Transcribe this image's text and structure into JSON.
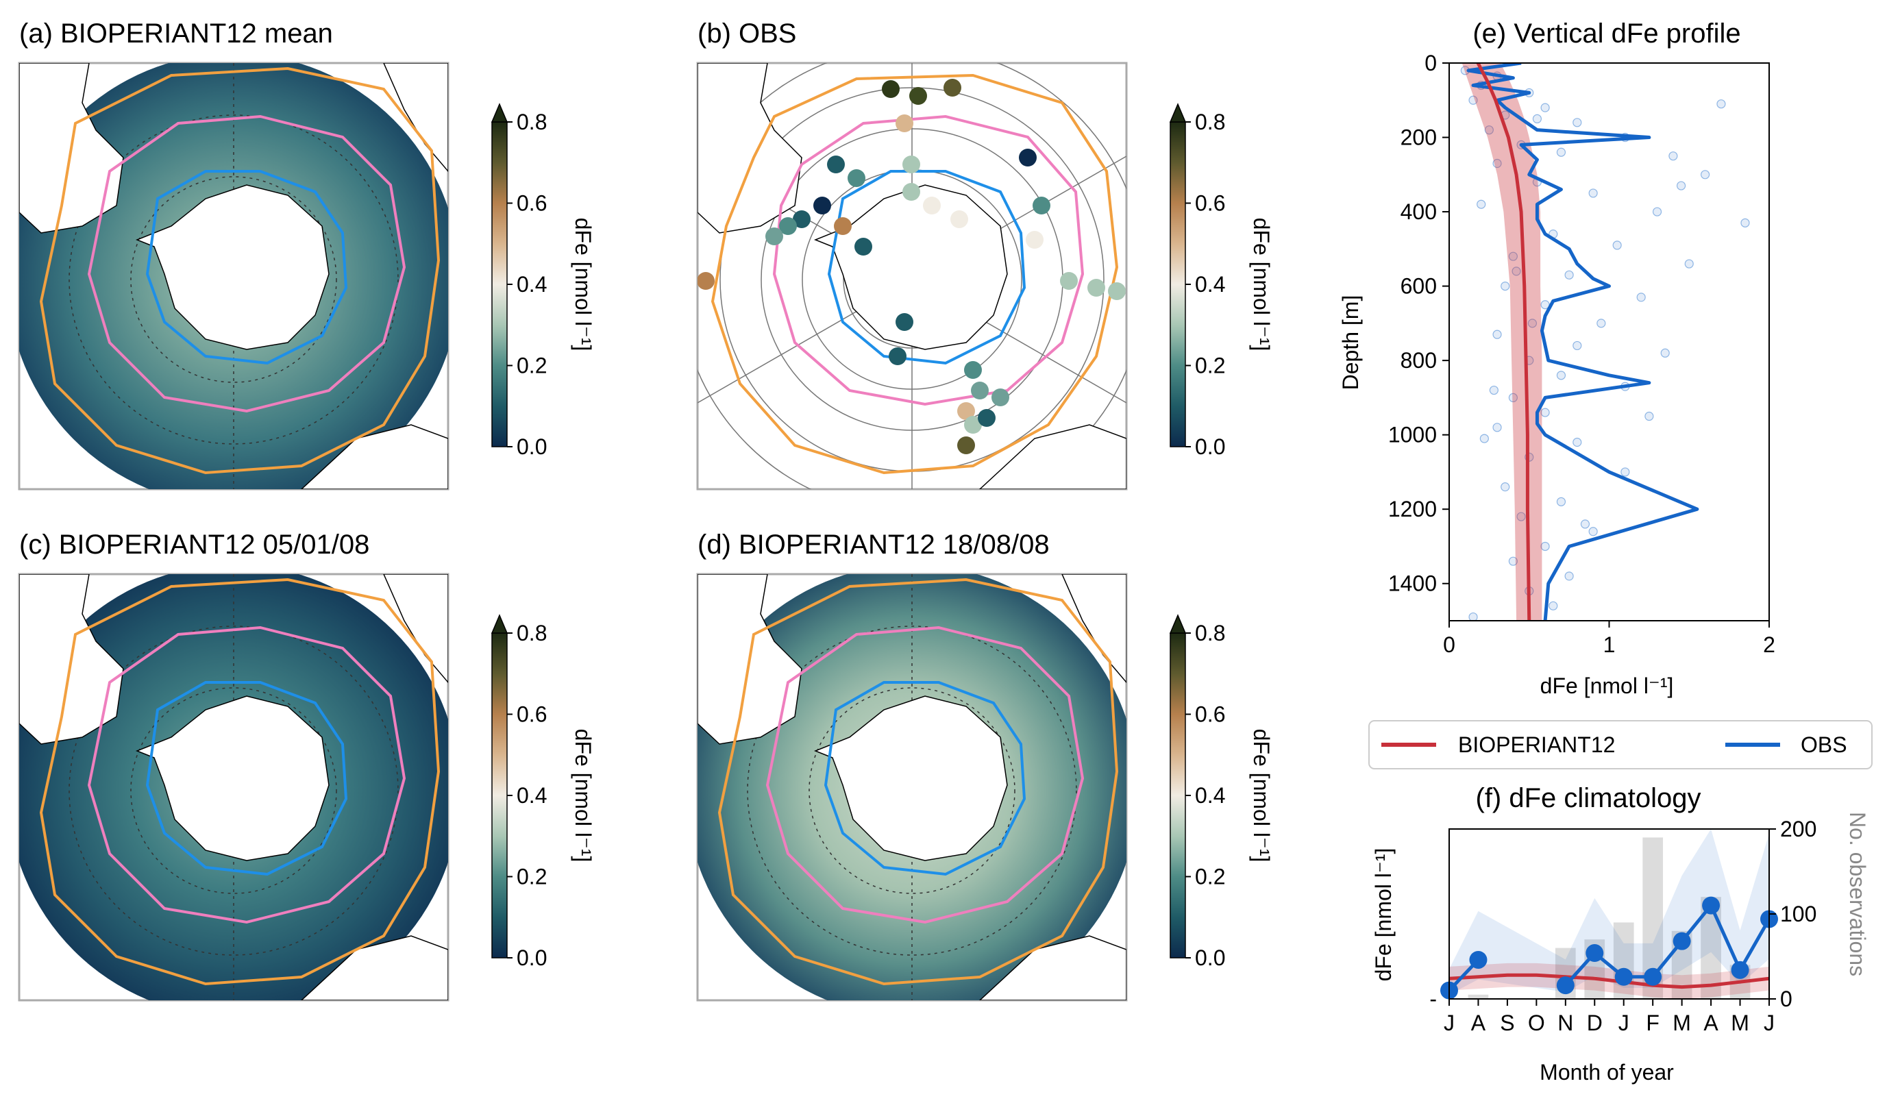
{
  "panels": {
    "a": {
      "title": "(a) BIOPERIANT12 mean"
    },
    "b": {
      "title": "(b) OBS"
    },
    "c": {
      "title": "(c) BIOPERIANT12 05/01/08"
    },
    "d": {
      "title": "(d) BIOPERIANT12 18/08/08"
    }
  },
  "colorbar": {
    "label": "dFe [nmol l⁻¹]",
    "ticks": [
      "0.0",
      "0.2",
      "0.4",
      "0.6",
      "0.8"
    ],
    "range": [
      0,
      0.8
    ],
    "extend": "max",
    "colors": [
      "#0c2a4d",
      "#1f5b66",
      "#4e8c86",
      "#a9c7b5",
      "#f1ece3",
      "#d9b58e",
      "#b6804d",
      "#5e5a2e",
      "#1d2a12"
    ]
  },
  "map_colors": {
    "front_orange": "#f2a040",
    "front_pink": "#ef7fbe",
    "front_blue": "#1e8fe8"
  },
  "legend": {
    "entries": [
      {
        "label": "BIOPERIANT12",
        "color": "#c8303a"
      },
      {
        "label": "OBS",
        "color": "#1565c8"
      }
    ],
    "placement": "between-e-and-f"
  },
  "chart_data": [
    {
      "panel": "e",
      "type": "line",
      "title": "(e) Vertical dFe profile",
      "xlabel": "dFe [nmol l⁻¹]",
      "ylabel": "Depth [m]",
      "xlim": [
        0,
        2
      ],
      "ylim": [
        1500,
        0
      ],
      "xticks": [
        "0",
        "1",
        "2"
      ],
      "yticks": [
        "0",
        "200",
        "400",
        "600",
        "800",
        "1000",
        "1200",
        "1400"
      ],
      "series": [
        {
          "name": "BIOPERIANT12",
          "color": "#c8303a",
          "depth": [
            0,
            50,
            100,
            150,
            200,
            300,
            400,
            600,
            800,
            1000,
            1200,
            1500
          ],
          "mean": [
            0.18,
            0.24,
            0.29,
            0.33,
            0.37,
            0.42,
            0.45,
            0.47,
            0.48,
            0.49,
            0.49,
            0.5
          ],
          "lower": [
            0.08,
            0.12,
            0.16,
            0.2,
            0.24,
            0.3,
            0.34,
            0.38,
            0.39,
            0.4,
            0.41,
            0.42
          ],
          "upper": [
            0.32,
            0.38,
            0.43,
            0.47,
            0.5,
            0.55,
            0.57,
            0.57,
            0.58,
            0.58,
            0.58,
            0.58
          ]
        },
        {
          "name": "OBS",
          "color": "#1565c8",
          "depth": [
            0,
            20,
            40,
            60,
            80,
            100,
            120,
            150,
            180,
            200,
            220,
            260,
            300,
            340,
            380,
            420,
            460,
            500,
            540,
            580,
            600,
            640,
            680,
            720,
            760,
            800,
            840,
            860,
            900,
            940,
            970,
            1000,
            1100,
            1200,
            1300,
            1400,
            1500
          ],
          "x": [
            0.45,
            0.12,
            0.4,
            0.15,
            0.5,
            0.3,
            0.35,
            0.45,
            0.55,
            1.25,
            0.45,
            0.55,
            0.5,
            0.7,
            0.55,
            0.55,
            0.6,
            0.75,
            0.8,
            0.9,
            1.0,
            0.65,
            0.6,
            0.58,
            0.6,
            0.62,
            1.0,
            1.25,
            0.6,
            0.55,
            0.55,
            0.6,
            1.0,
            1.55,
            0.75,
            0.62,
            0.6
          ]
        }
      ],
      "obs_scatter": [
        [
          0.1,
          20
        ],
        [
          0.3,
          35
        ],
        [
          0.2,
          60
        ],
        [
          0.5,
          80
        ],
        [
          0.15,
          100
        ],
        [
          0.6,
          120
        ],
        [
          0.35,
          140
        ],
        [
          0.8,
          160
        ],
        [
          0.25,
          180
        ],
        [
          1.1,
          200
        ],
        [
          0.45,
          220
        ],
        [
          0.7,
          240
        ],
        [
          1.4,
          250
        ],
        [
          0.3,
          270
        ],
        [
          1.6,
          300
        ],
        [
          0.55,
          320
        ],
        [
          0.9,
          350
        ],
        [
          0.2,
          380
        ],
        [
          1.3,
          400
        ],
        [
          1.85,
          430
        ],
        [
          0.65,
          460
        ],
        [
          1.05,
          490
        ],
        [
          0.4,
          520
        ],
        [
          1.5,
          540
        ],
        [
          0.75,
          570
        ],
        [
          0.35,
          600
        ],
        [
          1.2,
          630
        ],
        [
          0.6,
          650
        ],
        [
          0.95,
          700
        ],
        [
          0.3,
          730
        ],
        [
          0.8,
          760
        ],
        [
          1.35,
          780
        ],
        [
          0.5,
          800
        ],
        [
          0.7,
          840
        ],
        [
          1.1,
          870
        ],
        [
          0.4,
          900
        ],
        [
          0.6,
          940
        ],
        [
          0.3,
          980
        ],
        [
          0.8,
          1020
        ],
        [
          0.5,
          1060
        ],
        [
          1.1,
          1100
        ],
        [
          0.35,
          1140
        ],
        [
          0.7,
          1180
        ],
        [
          0.45,
          1220
        ],
        [
          0.9,
          1260
        ],
        [
          0.6,
          1300
        ],
        [
          0.4,
          1340
        ],
        [
          0.75,
          1380
        ],
        [
          0.5,
          1420
        ],
        [
          0.65,
          1460
        ],
        [
          0.15,
          1490
        ],
        [
          0.55,
          150
        ],
        [
          0.42,
          560
        ],
        [
          0.28,
          880
        ],
        [
          1.45,
          330
        ],
        [
          1.7,
          110
        ],
        [
          0.85,
          1240
        ],
        [
          0.22,
          1010
        ],
        [
          0.52,
          700
        ],
        [
          1.25,
          950
        ]
      ]
    },
    {
      "panel": "f",
      "type": "line",
      "title": "(f) dFe climatology",
      "xlabel": "Month of year",
      "ylabel": "dFe [nmol l⁻¹]",
      "y2label": "No. observations",
      "xticks": [
        "J",
        "A",
        "S",
        "O",
        "N",
        "D",
        "J",
        "F",
        "M",
        "A",
        "M",
        "J"
      ],
      "yticks": [
        "-"
      ],
      "y2lim": [
        0,
        200
      ],
      "y2ticks": [
        "0",
        "100",
        "200"
      ],
      "ylim": [
        0,
        1
      ],
      "bars_nobs": [
        0,
        5,
        0,
        0,
        60,
        70,
        90,
        190,
        80,
        120,
        40,
        0
      ],
      "series": [
        {
          "name": "BIOPERIANT12",
          "color": "#c8303a",
          "values": [
            0.12,
            0.13,
            0.14,
            0.14,
            0.13,
            0.12,
            0.1,
            0.08,
            0.07,
            0.08,
            0.1,
            0.12
          ]
        },
        {
          "name": "OBS",
          "color": "#1565c8",
          "values": [
            0.05,
            0.23,
            null,
            null,
            0.08,
            0.27,
            0.13,
            0.13,
            0.34,
            0.55,
            0.17,
            0.47
          ]
        }
      ]
    }
  ]
}
